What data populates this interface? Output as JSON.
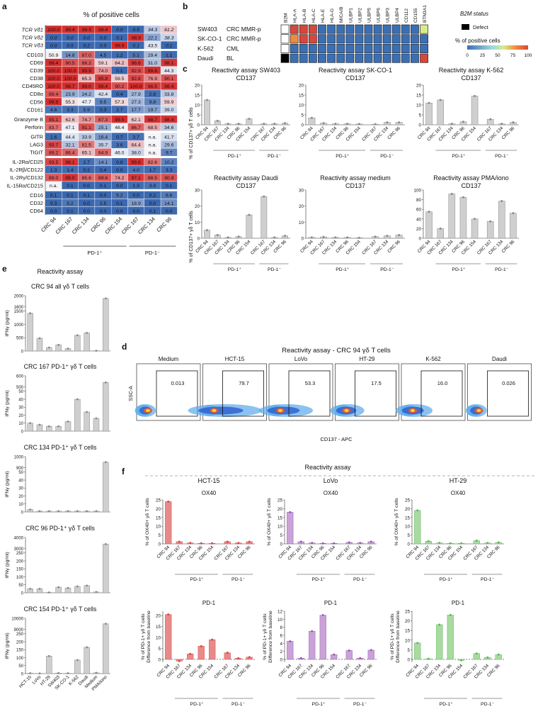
{
  "panel_letters": {
    "a": "a",
    "b": "b",
    "c": "c",
    "d": "d",
    "e": "e",
    "f": "f"
  },
  "a": {
    "title": "% of positive cells",
    "rows": [
      "TCR Vδ1",
      "TCR Vδ2",
      "TCR Vδ3",
      "CD103",
      "CD69",
      "CD39",
      "CD38",
      "CD45RO",
      "CD8α",
      "CD56",
      "CD161",
      "Granzyme B",
      "Perforin",
      "GITR",
      "LAG3",
      "TIGIT",
      "IL-2Rα/CD25",
      "IL-2Rβ/CD122",
      "IL-2Rγ/CD132",
      "IL-15Rα/CD215",
      "CD16",
      "CD32",
      "CD64"
    ],
    "italic_rows": [
      0,
      1,
      2
    ],
    "groups": [
      [
        0,
        1,
        2
      ],
      [
        3,
        4,
        5,
        6,
        7,
        8,
        9,
        10
      ],
      [
        11,
        12
      ],
      [
        13,
        14,
        15
      ],
      [
        16,
        17,
        18,
        19
      ],
      [
        20,
        21,
        22
      ]
    ],
    "cols": [
      "CRC 94",
      "CRC 167",
      "CRC 134",
      "CRC 96",
      "CRC 154",
      "CRC 167",
      "CRC 134",
      "CRC 96"
    ],
    "values": [
      [
        "100.0",
        "99.4",
        "99.5",
        "99.4",
        "0.0",
        "0.5",
        "34.3",
        "61.2"
      ],
      [
        "0.0",
        "0.0",
        "0.0",
        "0.0",
        "0.1",
        "98.9",
        "22.1",
        "38.3"
      ],
      [
        "0.0",
        "0.5",
        "0.2",
        "0.5",
        "99.9",
        "0.1",
        "43.5",
        "0.1"
      ],
      [
        "50.9",
        "14.8",
        "87.0",
        "4.5",
        "1.2",
        "5.1",
        "29.4",
        "1.1"
      ],
      [
        "99.4",
        "90.5",
        "88.2",
        "59.1",
        "64.2",
        "96.6",
        "31.0",
        "98.1"
      ],
      [
        "100.0",
        "100.0",
        "99.9",
        "74.0",
        "0.1",
        "92.9",
        "99.8",
        "44.3"
      ],
      [
        "100.0",
        "100.0",
        "65.3",
        "95.8",
        "59.5",
        "92.8",
        "76.9",
        "90.1"
      ],
      [
        "100.0",
        "99.7",
        "99.0",
        "99.4",
        "90.2",
        "100.0",
        "96.5",
        "98.4"
      ],
      [
        "89.4",
        "23.9",
        "24.2",
        "42.4",
        "0.4",
        "27.9",
        "2.8",
        "33.8"
      ],
      [
        "99.9",
        "55.3",
        "47.7",
        "9.5",
        "57.3",
        "27.3",
        "9.8",
        "59.9"
      ],
      [
        "4.6",
        "3.3",
        "5.9",
        "0.3",
        "2.7",
        "17.7",
        "19.7",
        "39.0"
      ],
      [
        "93.1",
        "62.6",
        "74.7",
        "87.3",
        "99.5",
        "62.1",
        "98.7",
        "98.4"
      ],
      [
        "83.7",
        "47.1",
        "91.1",
        "25.1",
        "48.4",
        "86.7",
        "68.5",
        "34.6"
      ],
      [
        "1.6",
        "44.4",
        "33.9",
        "16.4",
        "0.7",
        "3.7",
        "n.a.",
        "41.7"
      ],
      [
        "93.7",
        "32.1",
        "81.5",
        "35.7",
        "3.6",
        "64.4",
        "n.a.",
        "29.6"
      ],
      [
        "89.2",
        "86.4",
        "65.1",
        "84.9",
        "46.0",
        "38.0",
        "n.a.",
        "9.7"
      ],
      [
        "93.5",
        "98.1",
        "2.7",
        "14.1",
        "0.8",
        "99.6",
        "82.6",
        "10.2"
      ],
      [
        "1.3",
        "1.4",
        "0.2",
        "0.4",
        "0.0",
        "4.0",
        "1.7",
        "3.3"
      ],
      [
        "89.0",
        "99.0",
        "85.6",
        "89.6",
        "74.2",
        "97.1",
        "88.5",
        "90.9"
      ],
      [
        "n.a.",
        "0.1",
        "0.0",
        "0.1",
        "0.0",
        "1.3",
        "3.9",
        "0.1"
      ],
      [
        "0.1",
        "0.1",
        "0.1",
        "0.0",
        "5.2",
        "0.0",
        "0.2",
        "6.6"
      ],
      [
        "0.3",
        "5.2",
        "0.0",
        "2.5",
        "0.1",
        "18.9",
        "0.0",
        "14.1"
      ],
      [
        "0.0",
        "0.1",
        "0.0",
        "0.0",
        "0.0",
        "0.0",
        "0.1",
        "0.0"
      ]
    ],
    "group_labels": [
      "PD-1⁺",
      "PD-1⁻"
    ]
  },
  "b": {
    "lines": [
      {
        "name": "SW403",
        "type": "CRC MMR-p"
      },
      {
        "name": "SK-CO-1",
        "type": "CRC MMR-p"
      },
      {
        "name": "K-562",
        "type": "CML"
      },
      {
        "name": "Daudi",
        "type": "BL"
      }
    ],
    "cols": [
      "B2M",
      "HLA-A",
      "HLA-B",
      "HLA-C",
      "HLA-E",
      "HLA-G",
      "MICA/B",
      "ULBP1",
      "ULBP2",
      "ULBP5",
      "ULBP6",
      "ULBP3",
      "ULBP4",
      "CD112",
      "CD155",
      "BTN3A1"
    ],
    "b2m_status": [
      "ok",
      "ok",
      "ok",
      "defect"
    ],
    "values": [
      [
        null,
        95,
        95,
        95,
        10,
        10,
        10,
        10,
        10,
        10,
        10,
        10,
        10,
        10,
        10,
        45
      ],
      [
        null,
        80,
        95,
        95,
        10,
        10,
        10,
        10,
        10,
        10,
        10,
        10,
        10,
        10,
        10,
        10
      ],
      [
        null,
        5,
        5,
        5,
        10,
        10,
        10,
        10,
        10,
        10,
        10,
        10,
        10,
        10,
        10,
        10
      ],
      [
        null,
        5,
        5,
        5,
        10,
        10,
        10,
        10,
        10,
        10,
        10,
        10,
        10,
        10,
        10,
        95
      ]
    ],
    "legend_status_title": "B2M status",
    "legend_defect": "Defect",
    "legend_pct_title": "% of positive cells",
    "legend_ticks": [
      "0",
      "25",
      "50",
      "75",
      "100"
    ]
  },
  "c": {
    "ylabel": "% of CD137+ γδ T cells",
    "sub": "CD137",
    "cats": [
      "CRC 94",
      "CRC 167",
      "CRC 134",
      "CRC 96",
      "CRC 154",
      "CRC 167",
      "CRC 134",
      "CRC 96"
    ],
    "group_labels": [
      "PD-1⁺",
      "PD-1⁻"
    ],
    "panels": [
      {
        "title": "Reactivity assay SW403",
        "ymax": 20,
        "ticks": [
          "0",
          "5",
          "10",
          "15",
          "20"
        ],
        "values": [
          12.5,
          2,
          0.5,
          0.5,
          3,
          0.5,
          0.5,
          0.8
        ]
      },
      {
        "title": "Reactivity assay SK-CO-1",
        "ymax": 20,
        "ticks": [
          "0",
          "5",
          "10",
          "15",
          "20"
        ],
        "values": [
          3.5,
          0.8,
          0.5,
          0.5,
          0.4,
          0.3,
          1.2,
          1.2
        ]
      },
      {
        "title": "Reactivity assay K-562",
        "ymax": 20,
        "ticks": [
          "0",
          "5",
          "10",
          "15",
          "20"
        ],
        "values": [
          11,
          12.5,
          0.5,
          1.5,
          14.5,
          2.8,
          0.5,
          1.2
        ]
      },
      {
        "title": "Reactivity assay Daudi",
        "ymax": 30,
        "ticks": [
          "0",
          "10",
          "20",
          "30"
        ],
        "values": [
          5,
          2,
          0.5,
          1,
          14.5,
          26,
          0.5,
          1.5
        ]
      },
      {
        "title": "Reactivity assay medium",
        "ymax": 30,
        "ticks": [
          "0",
          "10",
          "20",
          "30"
        ],
        "values": [
          0.5,
          0.8,
          0.5,
          0.5,
          0.3,
          1,
          1.5,
          2
        ]
      },
      {
        "title": "Reactivity assay PMA/iono",
        "ymax": 100,
        "ticks": [
          "0",
          "20",
          "40",
          "60",
          "80",
          "100"
        ],
        "values": [
          55,
          20,
          92,
          85,
          40,
          35,
          77,
          52
        ]
      }
    ]
  },
  "d": {
    "title": "Reactivity assay - CRC 94 γδ T cells",
    "ylabel": "SSC-A",
    "xlabel": "CD137 - APC",
    "plots": [
      {
        "title": "Medium",
        "value": "0.013"
      },
      {
        "title": "HCT-15",
        "value": "79.7"
      },
      {
        "title": "LoVo",
        "value": "53.3"
      },
      {
        "title": "HT-29",
        "value": "17.5"
      },
      {
        "title": "K-562",
        "value": "16.0"
      },
      {
        "title": "Daudi",
        "value": "0.026"
      }
    ]
  },
  "e": {
    "header": "Reactivity assay",
    "ylabel": "IFNγ (pg/ml)",
    "cats": [
      "HCT-15",
      "LoVo",
      "HT-29",
      "SW403",
      "SK-CO-1",
      "K-562",
      "Daudi",
      "Medium",
      "PMA/iono"
    ],
    "panels": [
      {
        "title": "CRC 94 all γδ T cells",
        "ticks": [
          "0",
          "500",
          "1000",
          "1500",
          "1600",
          "2000"
        ],
        "values": [
          1420,
          480,
          130,
          230,
          90,
          590,
          680,
          10,
          1900
        ]
      },
      {
        "title": "CRC 167 PD-1⁺ γδ T cells",
        "ticks": [
          "0",
          "10",
          "20",
          "30",
          "40",
          "50",
          "500",
          "600"
        ],
        "values": [
          10,
          8,
          6,
          6,
          12,
          40,
          24,
          16,
          540
        ]
      },
      {
        "title": "CRC 134 PD-1⁺ γδ T cells",
        "ticks": [
          "0",
          "10",
          "20",
          "30",
          "40",
          "50",
          "900",
          "1000"
        ],
        "values": [
          3,
          1,
          1,
          1,
          1,
          1,
          1,
          1,
          950
        ]
      },
      {
        "title": "CRC 96 PD-1⁺ γδ T cells",
        "ticks": [
          "0",
          "50",
          "100",
          "150",
          "200",
          "250",
          "3000",
          "4000"
        ],
        "values": [
          25,
          25,
          2,
          35,
          30,
          40,
          45,
          5,
          3400
        ]
      },
      {
        "title": "CRC 154 PD-1⁺ γδ T cells",
        "ticks": [
          "0",
          "50",
          "100",
          "150",
          "200",
          "250",
          "9000",
          "10000"
        ],
        "values": [
          2,
          1,
          110,
          3,
          2,
          85,
          165,
          5,
          9500
        ]
      }
    ]
  },
  "f": {
    "header": "Reactivity assay",
    "targets": [
      "HCT-15",
      "LoVo",
      "HT-29"
    ],
    "colors": [
      "#e88a8a",
      "#c9a3d6",
      "#a9dba0"
    ],
    "strokes": [
      "#d94848",
      "#9b59b6",
      "#5cb85c"
    ],
    "cats": [
      "CRC 94",
      "CRC 167",
      "CRC 134",
      "CRC 96",
      "CRC 154",
      "CRC 167",
      "CRC 134",
      "CRC 96"
    ],
    "group_labels": [
      "PD-1⁺",
      "PD-1⁻"
    ],
    "ox40": {
      "sub": "OX40",
      "ylabel": "% of OX40+ γδ T cells",
      "ymax": 25,
      "ticks": [
        "0",
        "5",
        "10",
        "15",
        "20",
        "25"
      ],
      "values": [
        [
          24,
          1.2,
          0.5,
          0.3,
          0.3,
          1.2,
          0.5,
          1.2
        ],
        [
          18,
          1.2,
          0.5,
          0.3,
          0.3,
          0.8,
          0.5,
          1.2
        ],
        [
          19,
          1.5,
          0.5,
          0.3,
          0.3,
          1.8,
          0.5,
          0.8
        ]
      ]
    },
    "pd1": {
      "sub": "PD-1",
      "ylabel": "% of PD-1+ γδ T cells Difference from baseline",
      "ticks": [
        [
          "0",
          "5",
          "10",
          "15",
          "20"
        ],
        [
          "0",
          "2",
          "4",
          "6",
          "8",
          "10",
          "12"
        ],
        [
          "0",
          "5",
          "10",
          "15",
          "20",
          "25"
        ]
      ],
      "ymax": [
        22,
        12,
        25
      ],
      "values": [
        [
          20.5,
          -0.8,
          2.5,
          6,
          9,
          3,
          0.5,
          1
        ],
        [
          4.5,
          0.3,
          7,
          11,
          1.2,
          2.2,
          0.3,
          2.3
        ],
        [
          8.5,
          0.3,
          18,
          23,
          -0.5,
          3,
          1,
          2.5
        ]
      ]
    }
  }
}
